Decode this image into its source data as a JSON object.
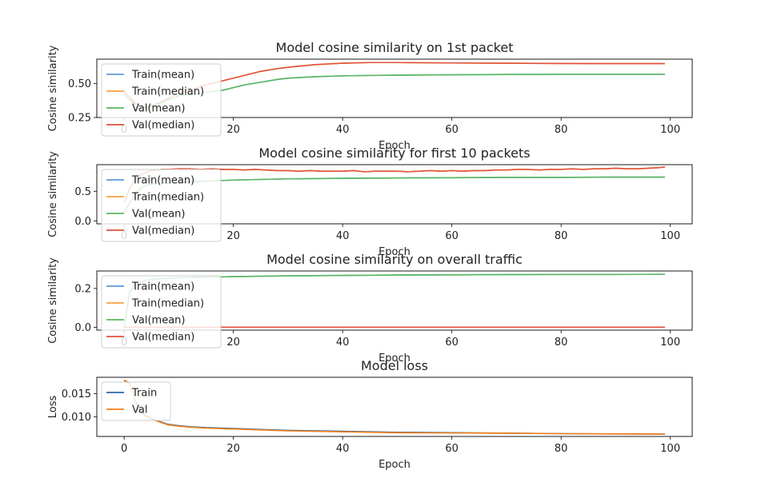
{
  "chart_data": [
    {
      "type": "line",
      "title": "Model cosine similarity on 1st packet",
      "xlabel": "Epoch",
      "ylabel": "Cosine similarity",
      "xlim": [
        -5,
        104
      ],
      "ylim": [
        0.25,
        0.68
      ],
      "xticks": [
        0,
        20,
        40,
        60,
        80,
        100
      ],
      "yticks": [
        0.25,
        0.5
      ],
      "ytick_labels": [
        "0.25",
        "0.50"
      ],
      "legend": "upper-left",
      "series": [
        {
          "name": "Train(mean)",
          "color": "#5b9bd5",
          "x": [
            0,
            1,
            2,
            3,
            4,
            5,
            6,
            7,
            8,
            9,
            10,
            12,
            14,
            16,
            18,
            20,
            22,
            25,
            28,
            30,
            35,
            40,
            45,
            50,
            60,
            70,
            80,
            90,
            99
          ],
          "y": [
            0.42,
            0.38,
            0.35,
            0.33,
            0.33,
            0.34,
            0.35,
            0.36,
            0.38,
            0.39,
            0.41,
            0.42,
            0.43,
            0.44,
            0.45,
            0.47,
            0.49,
            0.51,
            0.53,
            0.54,
            0.551,
            0.557,
            0.56,
            0.562,
            0.565,
            0.567,
            0.568,
            0.568,
            0.568
          ]
        },
        {
          "name": "Train(median)",
          "color": "#f7a044",
          "x": [
            0,
            1,
            2,
            3,
            4,
            5,
            6,
            7,
            8,
            9,
            10,
            12,
            14,
            16,
            18,
            20,
            22,
            25,
            28,
            30,
            35,
            40,
            45,
            50,
            60,
            70,
            80,
            90,
            99
          ],
          "y": [
            0.44,
            0.4,
            0.36,
            0.33,
            0.32,
            0.33,
            0.35,
            0.37,
            0.39,
            0.41,
            0.43,
            0.45,
            0.48,
            0.5,
            0.52,
            0.54,
            0.56,
            0.59,
            0.61,
            0.62,
            0.64,
            0.65,
            0.655,
            0.655,
            0.652,
            0.65,
            0.648,
            0.647,
            0.647
          ]
        },
        {
          "name": "Val(mean)",
          "color": "#5cb85c",
          "x": [
            0,
            1,
            2,
            3,
            4,
            5,
            6,
            7,
            8,
            9,
            10,
            12,
            14,
            16,
            18,
            20,
            22,
            25,
            28,
            30,
            35,
            40,
            45,
            50,
            60,
            70,
            80,
            90,
            99
          ],
          "y": [
            0.42,
            0.38,
            0.35,
            0.33,
            0.33,
            0.34,
            0.35,
            0.36,
            0.38,
            0.39,
            0.41,
            0.42,
            0.43,
            0.44,
            0.45,
            0.47,
            0.49,
            0.51,
            0.53,
            0.54,
            0.551,
            0.557,
            0.56,
            0.562,
            0.565,
            0.567,
            0.568,
            0.568,
            0.568
          ]
        },
        {
          "name": "Val(median)",
          "color": "#e0523a",
          "x": [
            0,
            1,
            2,
            3,
            4,
            5,
            6,
            7,
            8,
            9,
            10,
            12,
            14,
            16,
            18,
            20,
            22,
            25,
            28,
            30,
            35,
            40,
            45,
            50,
            60,
            70,
            80,
            90,
            99
          ],
          "y": [
            0.44,
            0.4,
            0.36,
            0.33,
            0.32,
            0.33,
            0.35,
            0.37,
            0.39,
            0.41,
            0.43,
            0.45,
            0.48,
            0.5,
            0.52,
            0.54,
            0.56,
            0.59,
            0.61,
            0.62,
            0.64,
            0.65,
            0.655,
            0.655,
            0.652,
            0.65,
            0.648,
            0.647,
            0.647
          ]
        }
      ]
    },
    {
      "type": "line",
      "title": "Model cosine similarity for first 10 packets",
      "xlabel": "Epoch",
      "ylabel": "Cosine similarity",
      "xlim": [
        -5,
        104
      ],
      "ylim": [
        -0.05,
        0.95
      ],
      "xticks": [
        0,
        20,
        40,
        60,
        80,
        100
      ],
      "yticks": [
        0.0,
        0.5
      ],
      "ytick_labels": [
        "0.0",
        "0.5"
      ],
      "legend": "upper-left",
      "series": [
        {
          "name": "Train(mean)",
          "color": "#5b9bd5",
          "x": [
            0,
            1,
            2,
            3,
            4,
            5,
            6,
            8,
            10,
            15,
            20,
            25,
            30,
            40,
            50,
            60,
            70,
            80,
            90,
            99
          ],
          "y": [
            0.15,
            0.3,
            0.45,
            0.55,
            0.6,
            0.62,
            0.63,
            0.64,
            0.65,
            0.67,
            0.69,
            0.7,
            0.71,
            0.72,
            0.725,
            0.73,
            0.735,
            0.735,
            0.74,
            0.74
          ]
        },
        {
          "name": "Train(median)",
          "color": "#f7a044",
          "x": [
            0,
            1,
            2,
            3,
            4,
            5,
            6,
            7,
            8,
            10,
            12,
            14,
            16,
            18,
            20,
            22,
            24,
            26,
            28,
            30,
            32,
            34,
            36,
            38,
            40,
            42,
            44,
            46,
            48,
            50,
            52,
            54,
            56,
            58,
            60,
            62,
            64,
            66,
            68,
            70,
            72,
            74,
            76,
            78,
            80,
            82,
            84,
            86,
            88,
            90,
            92,
            94,
            96,
            98,
            99
          ],
          "y": [
            0.3,
            0.55,
            0.7,
            0.78,
            0.82,
            0.85,
            0.86,
            0.87,
            0.87,
            0.88,
            0.88,
            0.87,
            0.88,
            0.87,
            0.87,
            0.86,
            0.87,
            0.86,
            0.85,
            0.85,
            0.84,
            0.85,
            0.84,
            0.84,
            0.84,
            0.85,
            0.83,
            0.84,
            0.84,
            0.84,
            0.83,
            0.84,
            0.85,
            0.84,
            0.85,
            0.84,
            0.85,
            0.85,
            0.86,
            0.86,
            0.87,
            0.87,
            0.86,
            0.87,
            0.87,
            0.88,
            0.87,
            0.88,
            0.88,
            0.89,
            0.88,
            0.88,
            0.89,
            0.9,
            0.91
          ]
        },
        {
          "name": "Val(mean)",
          "color": "#5cb85c",
          "x": [
            0,
            1,
            2,
            3,
            4,
            5,
            6,
            8,
            10,
            15,
            20,
            25,
            30,
            40,
            50,
            60,
            70,
            80,
            90,
            99
          ],
          "y": [
            0.15,
            0.3,
            0.45,
            0.55,
            0.6,
            0.62,
            0.63,
            0.64,
            0.65,
            0.67,
            0.69,
            0.7,
            0.71,
            0.72,
            0.725,
            0.73,
            0.735,
            0.735,
            0.74,
            0.74
          ]
        },
        {
          "name": "Val(median)",
          "color": "#e0523a",
          "x": [
            0,
            1,
            2,
            3,
            4,
            5,
            6,
            7,
            8,
            10,
            12,
            14,
            16,
            18,
            20,
            22,
            24,
            26,
            28,
            30,
            32,
            34,
            36,
            38,
            40,
            42,
            44,
            46,
            48,
            50,
            52,
            54,
            56,
            58,
            60,
            62,
            64,
            66,
            68,
            70,
            72,
            74,
            76,
            78,
            80,
            82,
            84,
            86,
            88,
            90,
            92,
            94,
            96,
            98,
            99
          ],
          "y": [
            0.3,
            0.55,
            0.7,
            0.78,
            0.82,
            0.85,
            0.86,
            0.87,
            0.87,
            0.88,
            0.88,
            0.87,
            0.88,
            0.87,
            0.87,
            0.86,
            0.87,
            0.86,
            0.85,
            0.85,
            0.84,
            0.85,
            0.84,
            0.84,
            0.84,
            0.85,
            0.83,
            0.84,
            0.84,
            0.84,
            0.83,
            0.84,
            0.85,
            0.84,
            0.85,
            0.84,
            0.85,
            0.85,
            0.86,
            0.86,
            0.87,
            0.87,
            0.86,
            0.87,
            0.87,
            0.88,
            0.87,
            0.88,
            0.88,
            0.89,
            0.88,
            0.88,
            0.89,
            0.9,
            0.91
          ]
        }
      ]
    },
    {
      "type": "line",
      "title": "Model cosine similarity on overall traffic",
      "xlabel": "Epoch",
      "ylabel": "Cosine similarity",
      "xlim": [
        -5,
        104
      ],
      "ylim": [
        -0.015,
        0.29
      ],
      "xticks": [
        0,
        20,
        40,
        60,
        80,
        100
      ],
      "yticks": [
        0.0,
        0.2
      ],
      "ytick_labels": [
        "0.0",
        "0.2"
      ],
      "legend": "upper-left",
      "series": [
        {
          "name": "Train(mean)",
          "color": "#5b9bd5",
          "x": [
            0,
            1,
            2,
            3,
            4,
            5,
            6,
            8,
            10,
            15,
            20,
            25,
            30,
            40,
            50,
            60,
            70,
            80,
            90,
            99
          ],
          "y": [
            0.0,
            0.18,
            0.22,
            0.235,
            0.242,
            0.246,
            0.249,
            0.252,
            0.255,
            0.258,
            0.261,
            0.263,
            0.265,
            0.267,
            0.269,
            0.27,
            0.271,
            0.272,
            0.272,
            0.273
          ]
        },
        {
          "name": "Train(median)",
          "color": "#f7a044",
          "x": [
            0,
            10,
            20,
            40,
            60,
            80,
            99
          ],
          "y": [
            0.0,
            0.0,
            0.0,
            0.0,
            0.0,
            0.0,
            0.0
          ]
        },
        {
          "name": "Val(mean)",
          "color": "#5cb85c",
          "x": [
            0,
            1,
            2,
            3,
            4,
            5,
            6,
            8,
            10,
            15,
            20,
            25,
            30,
            40,
            50,
            60,
            70,
            80,
            90,
            99
          ],
          "y": [
            0.0,
            0.18,
            0.22,
            0.235,
            0.242,
            0.246,
            0.249,
            0.252,
            0.255,
            0.258,
            0.261,
            0.263,
            0.265,
            0.267,
            0.269,
            0.27,
            0.271,
            0.272,
            0.272,
            0.273
          ]
        },
        {
          "name": "Val(median)",
          "color": "#e0523a",
          "x": [
            0,
            10,
            20,
            40,
            60,
            80,
            99
          ],
          "y": [
            0.0,
            0.0,
            0.0,
            0.0,
            0.0,
            0.0,
            0.0
          ]
        }
      ]
    },
    {
      "type": "line",
      "title": "Model loss",
      "xlabel": "Epoch",
      "ylabel": "Loss",
      "xlim": [
        -5,
        104
      ],
      "ylim": [
        0.0058,
        0.0185
      ],
      "xticks": [
        0,
        20,
        40,
        60,
        80,
        100
      ],
      "yticks": [
        0.01,
        0.015
      ],
      "ytick_labels": [
        "0.010",
        "0.015"
      ],
      "legend": "upper-left",
      "series": [
        {
          "name": "Train",
          "color": "#2a6aa8",
          "x": [
            0,
            1,
            2,
            3,
            4,
            5,
            6,
            7,
            8,
            10,
            12,
            15,
            20,
            25,
            30,
            40,
            50,
            60,
            70,
            80,
            90,
            99
          ],
          "y": [
            0.0178,
            0.0172,
            0.0135,
            0.0112,
            0.0102,
            0.0096,
            0.0092,
            0.0088,
            0.0084,
            0.0081,
            0.0079,
            0.0077,
            0.0075,
            0.0073,
            0.0071,
            0.0069,
            0.0067,
            0.0066,
            0.0065,
            0.0064,
            0.00635,
            0.0063
          ]
        },
        {
          "name": "Val",
          "color": "#f57f17",
          "x": [
            0,
            1,
            2,
            3,
            4,
            5,
            6,
            7,
            8,
            10,
            12,
            15,
            20,
            25,
            30,
            40,
            50,
            60,
            70,
            80,
            90,
            99
          ],
          "y": [
            0.0179,
            0.0173,
            0.0133,
            0.011,
            0.0101,
            0.0095,
            0.0091,
            0.0087,
            0.0083,
            0.008,
            0.0078,
            0.0076,
            0.0074,
            0.0072,
            0.007,
            0.0068,
            0.0066,
            0.00655,
            0.0065,
            0.0064,
            0.00635,
            0.0063
          ]
        }
      ]
    }
  ]
}
